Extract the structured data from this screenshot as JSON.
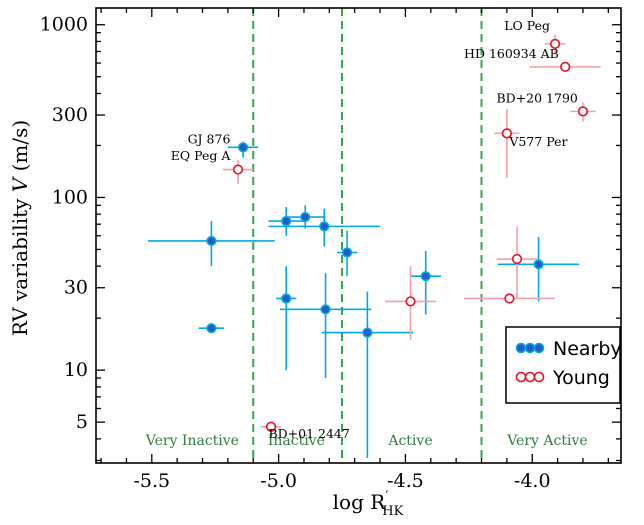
{
  "chart_data": {
    "type": "scatter",
    "xlabel_main": "log R",
    "xlabel_sup": "′",
    "xlabel_sub": "HK",
    "ylabel_pre": "RV variability ",
    "ylabel_var": "V",
    "ylabel_unit": " (m/s)",
    "xlim": [
      -5.72,
      -3.65
    ],
    "ylim": [
      2.9,
      1250
    ],
    "yscale": "log",
    "x_ticks": [
      {
        "value": -5.5,
        "label": "-5.5"
      },
      {
        "value": -5.0,
        "label": "-5.0"
      },
      {
        "value": -4.5,
        "label": "-4.5"
      },
      {
        "value": -4.0,
        "label": "-4.0"
      }
    ],
    "y_ticks": [
      {
        "value": 5,
        "label": "5"
      },
      {
        "value": 10,
        "label": "10"
      },
      {
        "value": 30,
        "label": "30"
      },
      {
        "value": 100,
        "label": "100"
      },
      {
        "value": 300,
        "label": "300"
      },
      {
        "value": 1000,
        "label": "1000"
      }
    ],
    "activity_boundaries": [
      -5.1,
      -4.75,
      -4.2
    ],
    "zones": [
      {
        "label": "Very Inactive",
        "x": -5.34
      },
      {
        "label": "Inactive",
        "x": -4.93
      },
      {
        "label": "Active",
        "x": -4.48
      },
      {
        "label": "Very Active",
        "x": -3.94
      }
    ],
    "legend": {
      "position": "bottom-right",
      "entries": [
        {
          "series": "nearby",
          "label": "Nearby"
        },
        {
          "series": "young",
          "label": "Young"
        }
      ]
    },
    "series": [
      {
        "name": "Nearby",
        "key": "nearby",
        "color": "#00a8e8",
        "fill": "#1f5fbf",
        "points": [
          {
            "x": -5.14,
            "y": 195,
            "xerr": [
              0.06,
              0.06
            ],
            "yerr": [
              25,
              15
            ]
          },
          {
            "x": -5.265,
            "y": 56,
            "xerr": [
              0.25,
              0.25
            ],
            "yerr": [
              16,
              17
            ]
          },
          {
            "x": -5.265,
            "y": 17.5,
            "xerr": [
              0.05,
              0.05
            ],
            "yerr": [
              0,
              0
            ]
          },
          {
            "x": -4.97,
            "y": 73,
            "xerr": [
              0.07,
              0.07
            ],
            "yerr": [
              13,
              15
            ]
          },
          {
            "x": -4.895,
            "y": 77,
            "xerr": [
              0.08,
              0.08
            ],
            "yerr": [
              11,
              13
            ]
          },
          {
            "x": -4.82,
            "y": 68,
            "xerr": [
              0.22,
              0.22
            ],
            "yerr": [
              16,
              18
            ]
          },
          {
            "x": -4.73,
            "y": 48,
            "xerr": [
              0.04,
              0.04
            ],
            "yerr": [
              13,
              16
            ]
          },
          {
            "x": -4.97,
            "y": 26,
            "xerr": [
              0.04,
              0.04
            ],
            "yerr": [
              16,
              14
            ]
          },
          {
            "x": -4.815,
            "y": 22.5,
            "xerr": [
              0.18,
              0.18
            ],
            "yerr": [
              13.5,
              14
            ]
          },
          {
            "x": -4.65,
            "y": 16.5,
            "xerr": [
              0.18,
              0.18
            ],
            "yerr": [
              13.4,
              12
            ]
          },
          {
            "x": -4.42,
            "y": 35,
            "xerr": [
              0.06,
              0.06
            ],
            "yerr": [
              14,
              14
            ]
          },
          {
            "x": -3.975,
            "y": 41,
            "xerr": [
              0.16,
              0.16
            ],
            "yerr": [
              16,
              18
            ]
          }
        ]
      },
      {
        "name": "Young",
        "key": "young",
        "color": "#f5a0a8",
        "fill": "#ffffff",
        "stroke": "#e8101e",
        "points": [
          {
            "x": -5.16,
            "y": 145,
            "xerr": [
              0.06,
              0.06
            ],
            "yerr": [
              25,
              20
            ]
          },
          {
            "x": -5.03,
            "y": 4.7,
            "xerr": [
              0.04,
              0.04
            ],
            "yerr": [
              0,
              0
            ]
          },
          {
            "x": -4.48,
            "y": 25,
            "xerr": [
              0.1,
              0.1
            ],
            "yerr": [
              10,
              15
            ]
          },
          {
            "x": -4.09,
            "y": 26,
            "xerr": [
              0.18,
              0.18
            ],
            "yerr": [
              0,
              0
            ]
          },
          {
            "x": -4.06,
            "y": 44,
            "xerr": [
              0.08,
              0.08
            ],
            "yerr": [
              18,
              24
            ]
          },
          {
            "x": -3.91,
            "y": 775,
            "xerr": [
              0.04,
              0.04
            ],
            "yerr": [
              100,
              100
            ]
          },
          {
            "x": -3.87,
            "y": 570,
            "xerr": [
              0.14,
              0.14
            ],
            "yerr": [
              0,
              0
            ]
          },
          {
            "x": -3.8,
            "y": 315,
            "xerr": [
              0.05,
              0.05
            ],
            "yerr": [
              40,
              40
            ]
          },
          {
            "x": -4.1,
            "y": 235,
            "xerr": [
              0.05,
              0.05
            ],
            "yerr": [
              105,
              90
            ]
          }
        ]
      }
    ],
    "annotations": [
      {
        "text": "GJ 876",
        "x": -5.19,
        "y": 205,
        "anchor": "end"
      },
      {
        "text": "EQ Peg A",
        "x": -5.19,
        "y": 165,
        "anchor": "end"
      },
      {
        "text": "LO Peg",
        "x": -3.93,
        "y": 930,
        "anchor": "end"
      },
      {
        "text": "HD 160934 AB",
        "x": -3.895,
        "y": 640,
        "anchor": "end"
      },
      {
        "text": "BD+20 1790",
        "x": -3.82,
        "y": 355,
        "anchor": "end"
      },
      {
        "text": "V577 Per",
        "x": -4.09,
        "y": 198,
        "anchor": "start"
      },
      {
        "text": "BD+01 2447",
        "x": -5.04,
        "y": 4.05,
        "anchor": "start"
      }
    ]
  }
}
